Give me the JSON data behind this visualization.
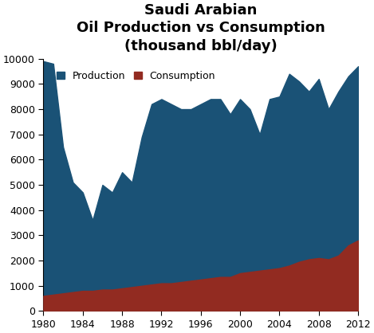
{
  "title": "Saudi Arabian\nOil Production vs Consumption\n(thousand bbl/day)",
  "production_color": "#1a5276",
  "consumption_color": "#922b21",
  "legend_labels": [
    "Production",
    "Consumption"
  ],
  "xlim": [
    1980,
    2012
  ],
  "ylim": [
    0,
    10000
  ],
  "yticks": [
    0,
    1000,
    2000,
    3000,
    4000,
    5000,
    6000,
    7000,
    8000,
    9000,
    10000
  ],
  "xticks": [
    1980,
    1984,
    1988,
    1992,
    1996,
    2000,
    2004,
    2008,
    2012
  ],
  "years": [
    1980,
    1981,
    1982,
    1983,
    1984,
    1985,
    1986,
    1987,
    1988,
    1989,
    1990,
    1991,
    1992,
    1993,
    1994,
    1995,
    1996,
    1997,
    1998,
    1999,
    2000,
    2001,
    2002,
    2003,
    2004,
    2005,
    2006,
    2007,
    2008,
    2009,
    2010,
    2011,
    2012
  ],
  "production": [
    9900,
    9800,
    6500,
    5100,
    4700,
    3600,
    5000,
    4700,
    5500,
    5100,
    6900,
    8200,
    8400,
    8200,
    8000,
    8000,
    8200,
    8400,
    8400,
    7800,
    8400,
    8000,
    7000,
    8400,
    8500,
    9400,
    9100,
    8700,
    9200,
    8000,
    8700,
    9300,
    9700
  ],
  "consumption": [
    600,
    650,
    700,
    750,
    800,
    800,
    850,
    850,
    900,
    950,
    1000,
    1050,
    1100,
    1100,
    1150,
    1200,
    1250,
    1300,
    1350,
    1350,
    1500,
    1550,
    1600,
    1650,
    1700,
    1800,
    1950,
    2050,
    2100,
    2050,
    2200,
    2600,
    2800
  ],
  "title_fontsize": 13,
  "tick_fontsize": 9,
  "legend_fontsize": 9
}
